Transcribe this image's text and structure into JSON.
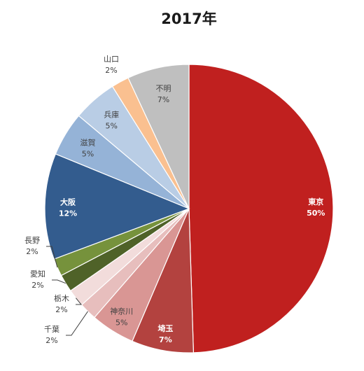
{
  "chart_data": {
    "type": "pie",
    "title": "2017年",
    "start_angle_deg": 0,
    "direction": "clockwise",
    "slices": [
      {
        "label": "東京",
        "value": 50,
        "value_label": "50%",
        "color": "#c0201f",
        "label_color": "#ffffff",
        "bold": true
      },
      {
        "label": "埼玉",
        "value": 7,
        "value_label": "7%",
        "color": "#b3423f",
        "label_color": "#ffffff",
        "bold": true
      },
      {
        "label": "神奈川",
        "value": 5,
        "value_label": "5%",
        "color": "#d99694",
        "label_color": "#404040",
        "bold": false
      },
      {
        "label": "千葉",
        "value": 2,
        "value_label": "2%",
        "color": "#e7bebd",
        "label_color": "#404040",
        "bold": false
      },
      {
        "label": "栃木",
        "value": 2,
        "value_label": "2%",
        "color": "#f2dcdb",
        "label_color": "#404040",
        "bold": false
      },
      {
        "label": "愛知",
        "value": 2,
        "value_label": "2%",
        "color": "#4f6228",
        "label_color": "#404040",
        "bold": false
      },
      {
        "label": "長野",
        "value": 2,
        "value_label": "2%",
        "color": "#76923c",
        "label_color": "#404040",
        "bold": false
      },
      {
        "label": "大阪",
        "value": 12,
        "value_label": "12%",
        "color": "#335c8e",
        "label_color": "#ffffff",
        "bold": true
      },
      {
        "label": "滋賀",
        "value": 5,
        "value_label": "5%",
        "color": "#95b3d7",
        "label_color": "#404040",
        "bold": false
      },
      {
        "label": "兵庫",
        "value": 5,
        "value_label": "5%",
        "color": "#b9cde5",
        "label_color": "#404040",
        "bold": false
      },
      {
        "label": "山口",
        "value": 2,
        "value_label": "2%",
        "color": "#fac090",
        "label_color": "#404040",
        "bold": false
      },
      {
        "label": "不明",
        "value": 7,
        "value_label": "7%",
        "color": "#bfbfbf",
        "label_color": "#404040",
        "bold": false
      }
    ]
  }
}
